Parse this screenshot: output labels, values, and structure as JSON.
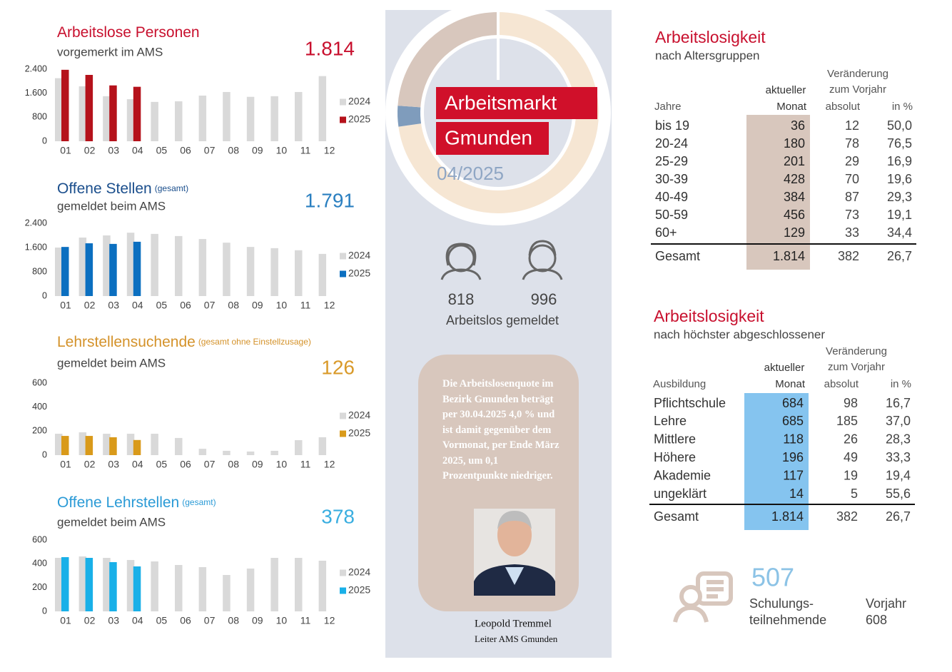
{
  "chart_data": [
    {
      "type": "bar",
      "title": "Arbeitslose Personen",
      "subtitle": "vorgemerkt im AMS",
      "headline": "1.814",
      "categories": [
        "01",
        "02",
        "03",
        "04",
        "05",
        "06",
        "07",
        "08",
        "09",
        "10",
        "11",
        "12"
      ],
      "series": [
        {
          "name": "2024",
          "color": "#d9d9d9",
          "values": [
            2100,
            1830,
            1500,
            1400,
            1310,
            1330,
            1520,
            1640,
            1480,
            1500,
            1640,
            2170
          ]
        },
        {
          "name": "2025",
          "color": "#b5121b",
          "values": [
            2380,
            2210,
            1860,
            1814,
            null,
            null,
            null,
            null,
            null,
            null,
            null,
            null
          ]
        }
      ],
      "ylim": [
        0,
        2400
      ],
      "yticks": [
        0,
        800,
        {
          "value": 1600,
          "label": "1.600"
        },
        {
          "value": 2400,
          "label": "2.400"
        }
      ],
      "title_color": "#c8102e",
      "headline_color": "#c8102e",
      "grid": false
    },
    {
      "type": "bar",
      "title": "Offene Stellen",
      "title_note": "(gesamt)",
      "subtitle": "gemeldet beim AMS",
      "headline": "1.791",
      "categories": [
        "01",
        "02",
        "03",
        "04",
        "05",
        "06",
        "07",
        "08",
        "09",
        "10",
        "11",
        "12"
      ],
      "series": [
        {
          "name": "2024",
          "color": "#d9d9d9",
          "values": [
            1600,
            1930,
            2000,
            2090,
            2050,
            1980,
            1880,
            1760,
            1620,
            1580,
            1510,
            1390
          ]
        },
        {
          "name": "2025",
          "color": "#0b6fc0",
          "values": [
            1620,
            1740,
            1720,
            1791,
            null,
            null,
            null,
            null,
            null,
            null,
            null,
            null
          ]
        }
      ],
      "ylim": [
        0,
        2400
      ],
      "yticks": [
        0,
        800,
        {
          "value": 1600,
          "label": "1.600"
        },
        {
          "value": 2400,
          "label": "2.400"
        }
      ],
      "title_color": "#1a4e8c",
      "headline_color": "#2a7fc0",
      "grid": false
    },
    {
      "type": "bar",
      "title": "Lehrstellensuchende",
      "title_note": "(gesamt ohne Einstellzusage)",
      "subtitle": "gemeldet beim AMS",
      "headline": "126",
      "categories": [
        "01",
        "02",
        "03",
        "04",
        "05",
        "06",
        "07",
        "08",
        "09",
        "10",
        "11",
        "12"
      ],
      "series": [
        {
          "name": "2024",
          "color": "#d9d9d9",
          "values": [
            178,
            190,
            178,
            178,
            178,
            143,
            53,
            36,
            30,
            36,
            125,
            149
          ]
        },
        {
          "name": "2025",
          "color": "#d99a1a",
          "values": [
            160,
            160,
            149,
            126,
            null,
            null,
            null,
            null,
            null,
            null,
            null,
            null
          ]
        }
      ],
      "ylim": [
        0,
        600
      ],
      "yticks": [
        0,
        200,
        400,
        600
      ],
      "title_color": "#d4922a",
      "headline_color": "#d99a2a",
      "grid": false
    },
    {
      "type": "bar",
      "title": "Offene Lehrstellen",
      "title_note": "(gesamt)",
      "subtitle": "gemeldet beim AMS",
      "headline": "378",
      "categories": [
        "01",
        "02",
        "03",
        "04",
        "05",
        "06",
        "07",
        "08",
        "09",
        "10",
        "11",
        "12"
      ],
      "series": [
        {
          "name": "2024",
          "color": "#d9d9d9",
          "values": [
            450,
            462,
            450,
            432,
            420,
            390,
            372,
            306,
            360,
            450,
            450,
            426
          ]
        },
        {
          "name": "2025",
          "color": "#19b0e8",
          "values": [
            456,
            450,
            414,
            378,
            null,
            null,
            null,
            null,
            null,
            null,
            null,
            null
          ]
        }
      ],
      "ylim": [
        0,
        600
      ],
      "yticks": [
        0,
        200,
        400,
        600
      ],
      "title_color": "#2a9ad6",
      "headline_color": "#3aaee0",
      "grid": false
    }
  ],
  "center": {
    "title1": "Arbeitsmarkt",
    "title2": "Gmunden",
    "period": "04/2025",
    "women": "818",
    "men": "996",
    "caption": "Arbeitslos gemeldet",
    "quote": "Die Arbeitslosenquote im Bezirk Gmunden beträgt per 30.04.2025 4,0 % und ist damit gegenüber dem Vormonat, per Ende März 2025, um 0,1 Prozentpunkte niedriger.",
    "name": "Leopold Tremmel",
    "role": "Leiter AMS Gmunden"
  },
  "age_table": {
    "title": "Arbeitslosigkeit",
    "subtitle": "nach Altersgruppen",
    "header": {
      "change1": "Veränderung",
      "change2": "zum Vorjahr",
      "current1": "aktueller",
      "current2": "Monat",
      "label": "Jahre",
      "absolute": "absolut",
      "percent": "in %"
    },
    "rows": [
      [
        "bis 19",
        "36",
        "12",
        "50,0"
      ],
      [
        "20-24",
        "180",
        "78",
        "76,5"
      ],
      [
        "25-29",
        "201",
        "29",
        "16,9"
      ],
      [
        "30-39",
        "428",
        "70",
        "19,6"
      ],
      [
        "40-49",
        "384",
        "87",
        "29,3"
      ],
      [
        "50-59",
        "456",
        "73",
        "19,1"
      ],
      [
        "60+",
        "129",
        "33",
        "34,4"
      ]
    ],
    "total": [
      "Gesamt",
      "1.814",
      "382",
      "26,7"
    ]
  },
  "edu_table": {
    "title": "Arbeitslosigkeit",
    "subtitle": "nach höchster abgeschlossener",
    "header": {
      "change1": "Veränderung",
      "change2": "zum Vorjahr",
      "current1": "aktueller",
      "current2": "Monat",
      "label": "Ausbildung",
      "absolute": "absolut",
      "percent": "in %"
    },
    "rows": [
      [
        "Pflichtschule",
        "684",
        "98",
        "16,7"
      ],
      [
        "Lehre",
        "685",
        "185",
        "37,0"
      ],
      [
        "Mittlere",
        "118",
        "26",
        "28,3"
      ],
      [
        "Höhere",
        "196",
        "49",
        "33,3"
      ],
      [
        "Akademie",
        "117",
        "19",
        "19,4"
      ],
      [
        "ungeklärt",
        "14",
        "5",
        "55,6"
      ]
    ],
    "total": [
      "Gesamt",
      "1.814",
      "382",
      "26,7"
    ]
  },
  "training": {
    "value": "507",
    "label1": "Schulungs-",
    "label2": "teilnehmende",
    "prev_label": "Vorjahr",
    "prev_value": "608"
  }
}
